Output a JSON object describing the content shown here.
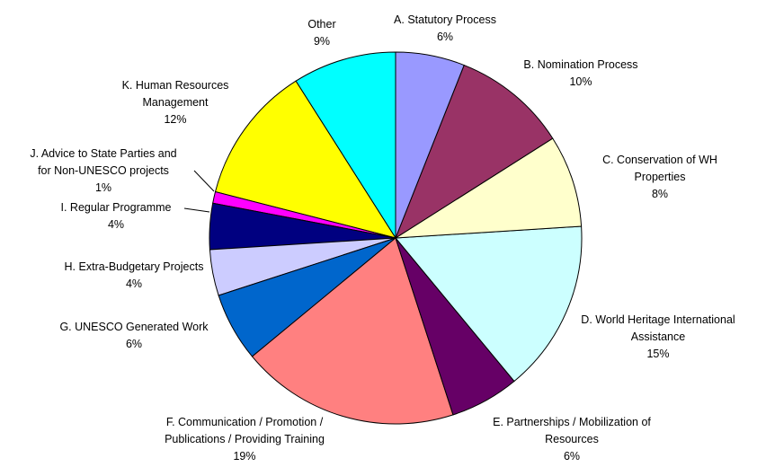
{
  "chart_data": {
    "type": "pie",
    "categories": [
      "A. Statutory Process",
      "B. Nomination Process",
      "C. Conservation of WH Properties",
      "D. World Heritage International Assistance",
      "E. Partnerships / Mobilization of Resources",
      "F. Communication / Promotion / Publications / Providing Training",
      "G. UNESCO Generated Work",
      "H. Extra-Budgetary Projects",
      "I. Regular Programme",
      "J. Advice to State Parties and for Non-UNESCO projects",
      "K. Human Resources Management",
      "Other"
    ],
    "values": [
      6,
      10,
      8,
      15,
      6,
      19,
      6,
      4,
      4,
      1,
      12,
      9
    ],
    "value_labels": [
      "6%",
      "10%",
      "8%",
      "15%",
      "6%",
      "19%",
      "6%",
      "4%",
      "4%",
      "1%",
      "12%",
      "9%"
    ],
    "colors": [
      "#9999ff",
      "#993366",
      "#ffffcc",
      "#ccffff",
      "#660066",
      "#ff8080",
      "#0066cc",
      "#ccccff",
      "#000080",
      "#ff00ff",
      "#ffff00",
      "#00ffff"
    ]
  }
}
